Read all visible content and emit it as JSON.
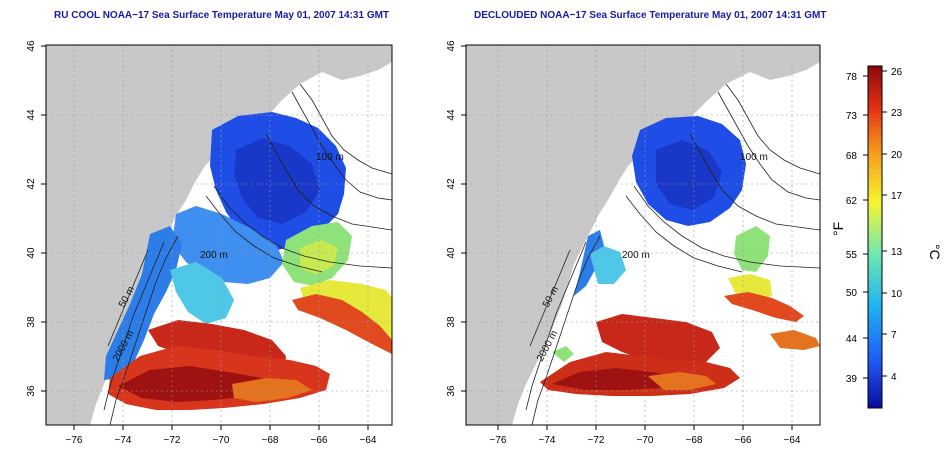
{
  "panels": [
    {
      "title": "RU COOL NOAA−17 Sea Surface Temperature May 01, 2007 14:31 GMT",
      "contours": [
        {
          "label": "100 m"
        },
        {
          "label": "200 m"
        },
        {
          "label": "50 m"
        },
        {
          "label": "2000 m"
        }
      ]
    },
    {
      "title": "DECLOUDED NOAA−17 Sea Surface Temperature May 01, 2007 14:31 GMT",
      "contours": [
        {
          "label": "100 m"
        },
        {
          "label": "200 m"
        },
        {
          "label": "50 m"
        },
        {
          "label": "2000 m"
        }
      ]
    }
  ],
  "axes": {
    "x_ticks": [
      "−76",
      "−74",
      "−72",
      "−70",
      "−68",
      "−66",
      "−64"
    ],
    "y_ticks": [
      "36",
      "38",
      "40",
      "42",
      "44",
      "46"
    ],
    "x_range": [
      -77,
      -63
    ],
    "y_range": [
      35,
      46
    ]
  },
  "colorbar": {
    "fahrenheit_ticks": [
      "78",
      "73",
      "68",
      "62",
      "55",
      "50",
      "44",
      "39"
    ],
    "celsius_ticks": [
      "26",
      "23",
      "20",
      "17",
      "13",
      "10",
      "7",
      "4"
    ],
    "fahrenheit_label": "°F",
    "celsius_label": "°C",
    "colors": [
      "#0a0a9e",
      "#1f5cf5",
      "#21b4f0",
      "#6fe8b0",
      "#f5f532",
      "#f59a1e",
      "#e03014",
      "#8a0a0a"
    ]
  },
  "colors": {
    "land": "#c8c8c8",
    "title": "#1a1aa6",
    "contour": "#202020",
    "grid": "#9a9a9a"
  }
}
